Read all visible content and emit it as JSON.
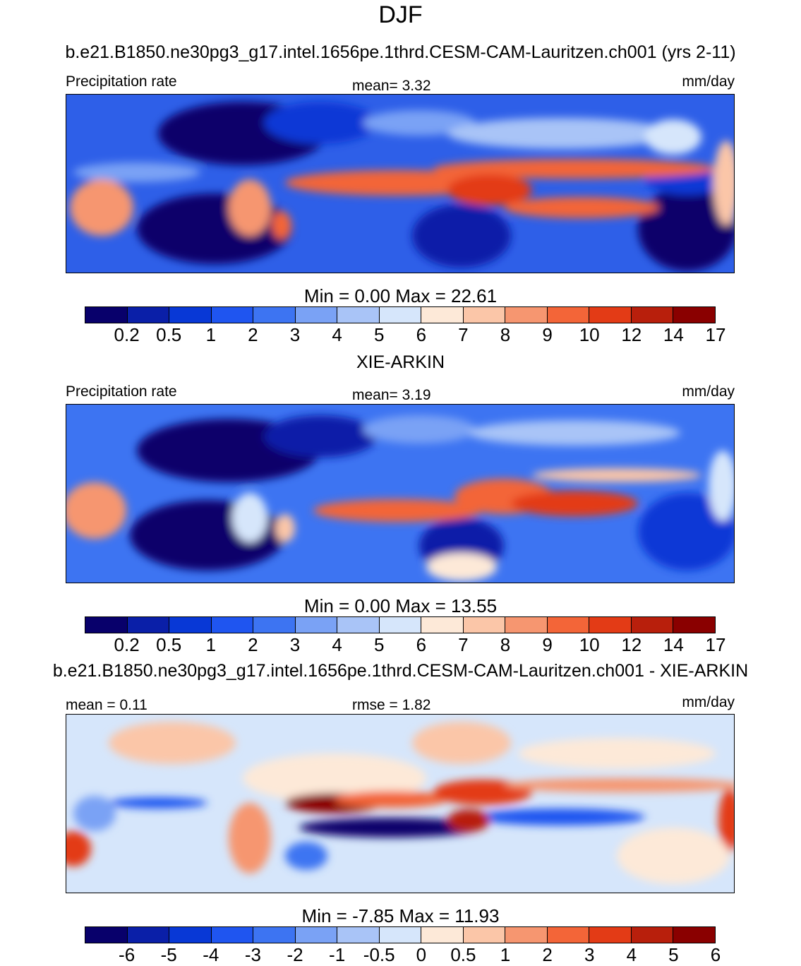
{
  "title": "DJF",
  "panels": [
    {
      "heading": "b.e21.B1850.ne30pg3_g17.intel.1656pe.1thrd.CESM-CAM-Lauritzen.ch001 (yrs 2-11)",
      "left_label": "Precipitation rate",
      "center_label": "mean=   3.32",
      "right_label": "mm/day",
      "minmax": "Min =   0.00 Max =  22.61",
      "colorbar_labels": [
        "0.2",
        "0.5",
        "1",
        "2",
        "3",
        "4",
        "5",
        "6",
        "7",
        "8",
        "9",
        "10",
        "12",
        "14",
        "17"
      ]
    },
    {
      "heading": "XIE-ARKIN",
      "left_label": "Precipitation rate",
      "center_label": "mean=   3.19",
      "right_label": "mm/day",
      "minmax": "Min =   0.00 Max =  13.55",
      "colorbar_labels": [
        "0.2",
        "0.5",
        "1",
        "2",
        "3",
        "4",
        "5",
        "6",
        "7",
        "8",
        "9",
        "10",
        "12",
        "14",
        "17"
      ]
    },
    {
      "heading": "b.e21.B1850.ne30pg3_g17.intel.1656pe.1thrd.CESM-CAM-Lauritzen.ch001 - XIE-ARKIN",
      "left_label": "mean =   0.11",
      "center_label": "rmse =   1.82",
      "right_label": "mm/day",
      "minmax": "Min =  -7.85 Max =  11.93",
      "colorbar_labels": [
        "-6",
        "-5",
        "-4",
        "-3",
        "-2",
        "-1",
        "-0.5",
        "0",
        "0.5",
        "1",
        "2",
        "3",
        "4",
        "5",
        "6"
      ]
    }
  ],
  "colors": {
    "palette": [
      "#08006b",
      "#0a1fa8",
      "#0838d6",
      "#1f55f0",
      "#3d74f2",
      "#7aa2f5",
      "#a9c4f7",
      "#d6e6fb",
      "#fde9d8",
      "#fbc6a8",
      "#f69670",
      "#f36538",
      "#e33b16",
      "#b81f0c",
      "#8a0000"
    ]
  }
}
